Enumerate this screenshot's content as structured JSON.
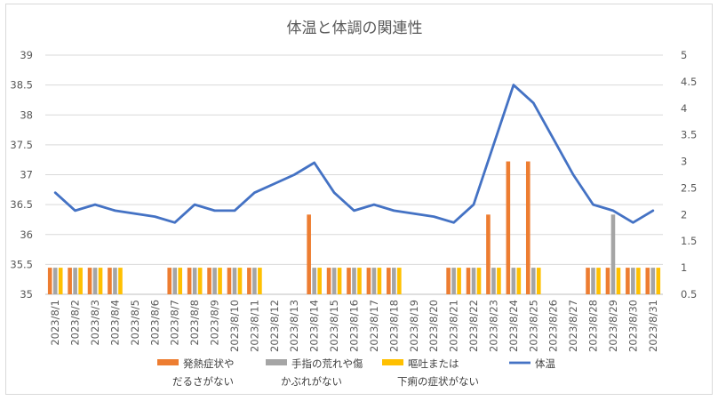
{
  "chart_data": {
    "type": "bar",
    "title": "体温と体調の関連性",
    "xlabel": "",
    "ylabel": "",
    "categories": [
      "2023/8/1",
      "2023/8/2",
      "2023/8/3",
      "2023/8/4",
      "2023/8/5",
      "2023/8/6",
      "2023/8/7",
      "2023/8/8",
      "2023/8/9",
      "2023/8/10",
      "2023/8/11",
      "2023/8/12",
      "2023/8/13",
      "2023/8/14",
      "2023/8/15",
      "2023/8/16",
      "2023/8/17",
      "2023/8/18",
      "2023/8/19",
      "2023/8/20",
      "2023/8/21",
      "2023/8/22",
      "2023/8/23",
      "2023/8/24",
      "2023/8/25",
      "2023/8/26",
      "2023/8/27",
      "2023/8/28",
      "2023/8/29",
      "2023/8/30",
      "2023/8/31"
    ],
    "y_left": {
      "min": 35,
      "max": 39,
      "ticks": [
        "35",
        "35.5",
        "36",
        "36.5",
        "37",
        "37.5",
        "38",
        "38.5",
        "39"
      ]
    },
    "y_right": {
      "min": 0.5,
      "max": 5,
      "ticks": [
        "0.5",
        "1",
        "1.5",
        "2",
        "2.5",
        "3",
        "3.5",
        "4",
        "4.5",
        "5"
      ]
    },
    "grid": true,
    "legend_position": "bottom",
    "series": [
      {
        "name_lines": [
          "発熱症状や",
          "だるさがない"
        ],
        "type": "bar",
        "axis": "right",
        "color": "#ED7D31",
        "values": [
          1,
          1,
          1,
          1,
          null,
          null,
          1,
          1,
          1,
          1,
          1,
          null,
          null,
          2,
          1,
          1,
          1,
          1,
          null,
          null,
          1,
          1,
          2,
          3,
          3,
          null,
          null,
          1,
          1,
          1,
          1
        ]
      },
      {
        "name_lines": [
          "手指の荒れや傷",
          "かぶれがない"
        ],
        "type": "bar",
        "axis": "right",
        "color": "#A5A5A5",
        "values": [
          1,
          1,
          1,
          1,
          null,
          null,
          1,
          1,
          1,
          1,
          1,
          null,
          null,
          1,
          1,
          1,
          1,
          1,
          null,
          null,
          1,
          1,
          1,
          1,
          1,
          null,
          null,
          1,
          2,
          1,
          1
        ]
      },
      {
        "name_lines": [
          "嘔吐または",
          "下痢の症状がない"
        ],
        "type": "bar",
        "axis": "right",
        "color": "#FFC000",
        "values": [
          1,
          1,
          1,
          1,
          null,
          null,
          1,
          1,
          1,
          1,
          1,
          null,
          null,
          1,
          1,
          1,
          1,
          1,
          null,
          null,
          1,
          1,
          1,
          1,
          1,
          null,
          null,
          1,
          1,
          1,
          1
        ]
      },
      {
        "name_lines": [
          "体温"
        ],
        "type": "line",
        "axis": "left",
        "color": "#4472C4",
        "values": [
          36.7,
          36.4,
          36.5,
          36.4,
          36.35,
          36.3,
          36.2,
          36.5,
          36.4,
          36.4,
          36.7,
          36.85,
          37.0,
          37.2,
          36.7,
          36.4,
          36.5,
          36.4,
          36.35,
          36.3,
          36.2,
          36.5,
          37.5,
          38.5,
          38.2,
          37.6,
          37.0,
          36.5,
          36.4,
          36.2,
          36.4
        ]
      }
    ]
  }
}
